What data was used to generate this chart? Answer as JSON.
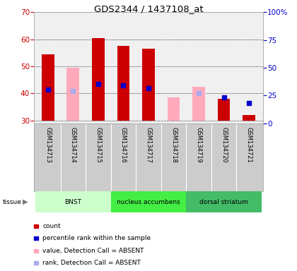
{
  "title": "GDS2344 / 1437108_at",
  "samples": [
    "GSM134713",
    "GSM134714",
    "GSM134715",
    "GSM134716",
    "GSM134717",
    "GSM134718",
    "GSM134719",
    "GSM134720",
    "GSM134721"
  ],
  "ylim_left": [
    29,
    70
  ],
  "ylim_right": [
    0,
    100
  ],
  "yticks_left": [
    30,
    40,
    50,
    60,
    70
  ],
  "yticks_right": [
    0,
    25,
    50,
    75,
    100
  ],
  "yticklabels_right": [
    "0",
    "25",
    "50",
    "75",
    "100%"
  ],
  "red_bars_top": [
    54.5,
    null,
    60.5,
    57.5,
    56.5,
    null,
    null,
    38,
    32
  ],
  "pink_bars_top": [
    null,
    49.5,
    null,
    null,
    null,
    38.5,
    42.5,
    null,
    null
  ],
  "blue_squares_y": [
    41.5,
    null,
    43.5,
    43,
    42,
    null,
    null,
    38.5,
    36.5
  ],
  "lightblue_squares_y": [
    null,
    41,
    null,
    null,
    null,
    null,
    40,
    null,
    null
  ],
  "bar_width": 0.5,
  "red_color": "#cc0000",
  "pink_color": "#ffaabb",
  "blue_color": "#0000cc",
  "lightblue_color": "#aaaaee",
  "left_axis_color": "#cc0000",
  "right_axis_color": "#0000cc",
  "tissue_labels": [
    "BNST",
    "nucleus accumbens",
    "dorsal striatum"
  ],
  "tissue_starts": [
    0,
    3,
    6
  ],
  "tissue_ends": [
    3,
    6,
    9
  ],
  "tissue_colors": [
    "#ccffcc",
    "#44ee44",
    "#44bb66"
  ],
  "legend_items": [
    {
      "color": "#cc0000",
      "label": "count"
    },
    {
      "color": "#0000cc",
      "label": "percentile rank within the sample"
    },
    {
      "color": "#ffaabb",
      "label": "value, Detection Call = ABSENT"
    },
    {
      "color": "#aaaaee",
      "label": "rank, Detection Call = ABSENT"
    }
  ]
}
